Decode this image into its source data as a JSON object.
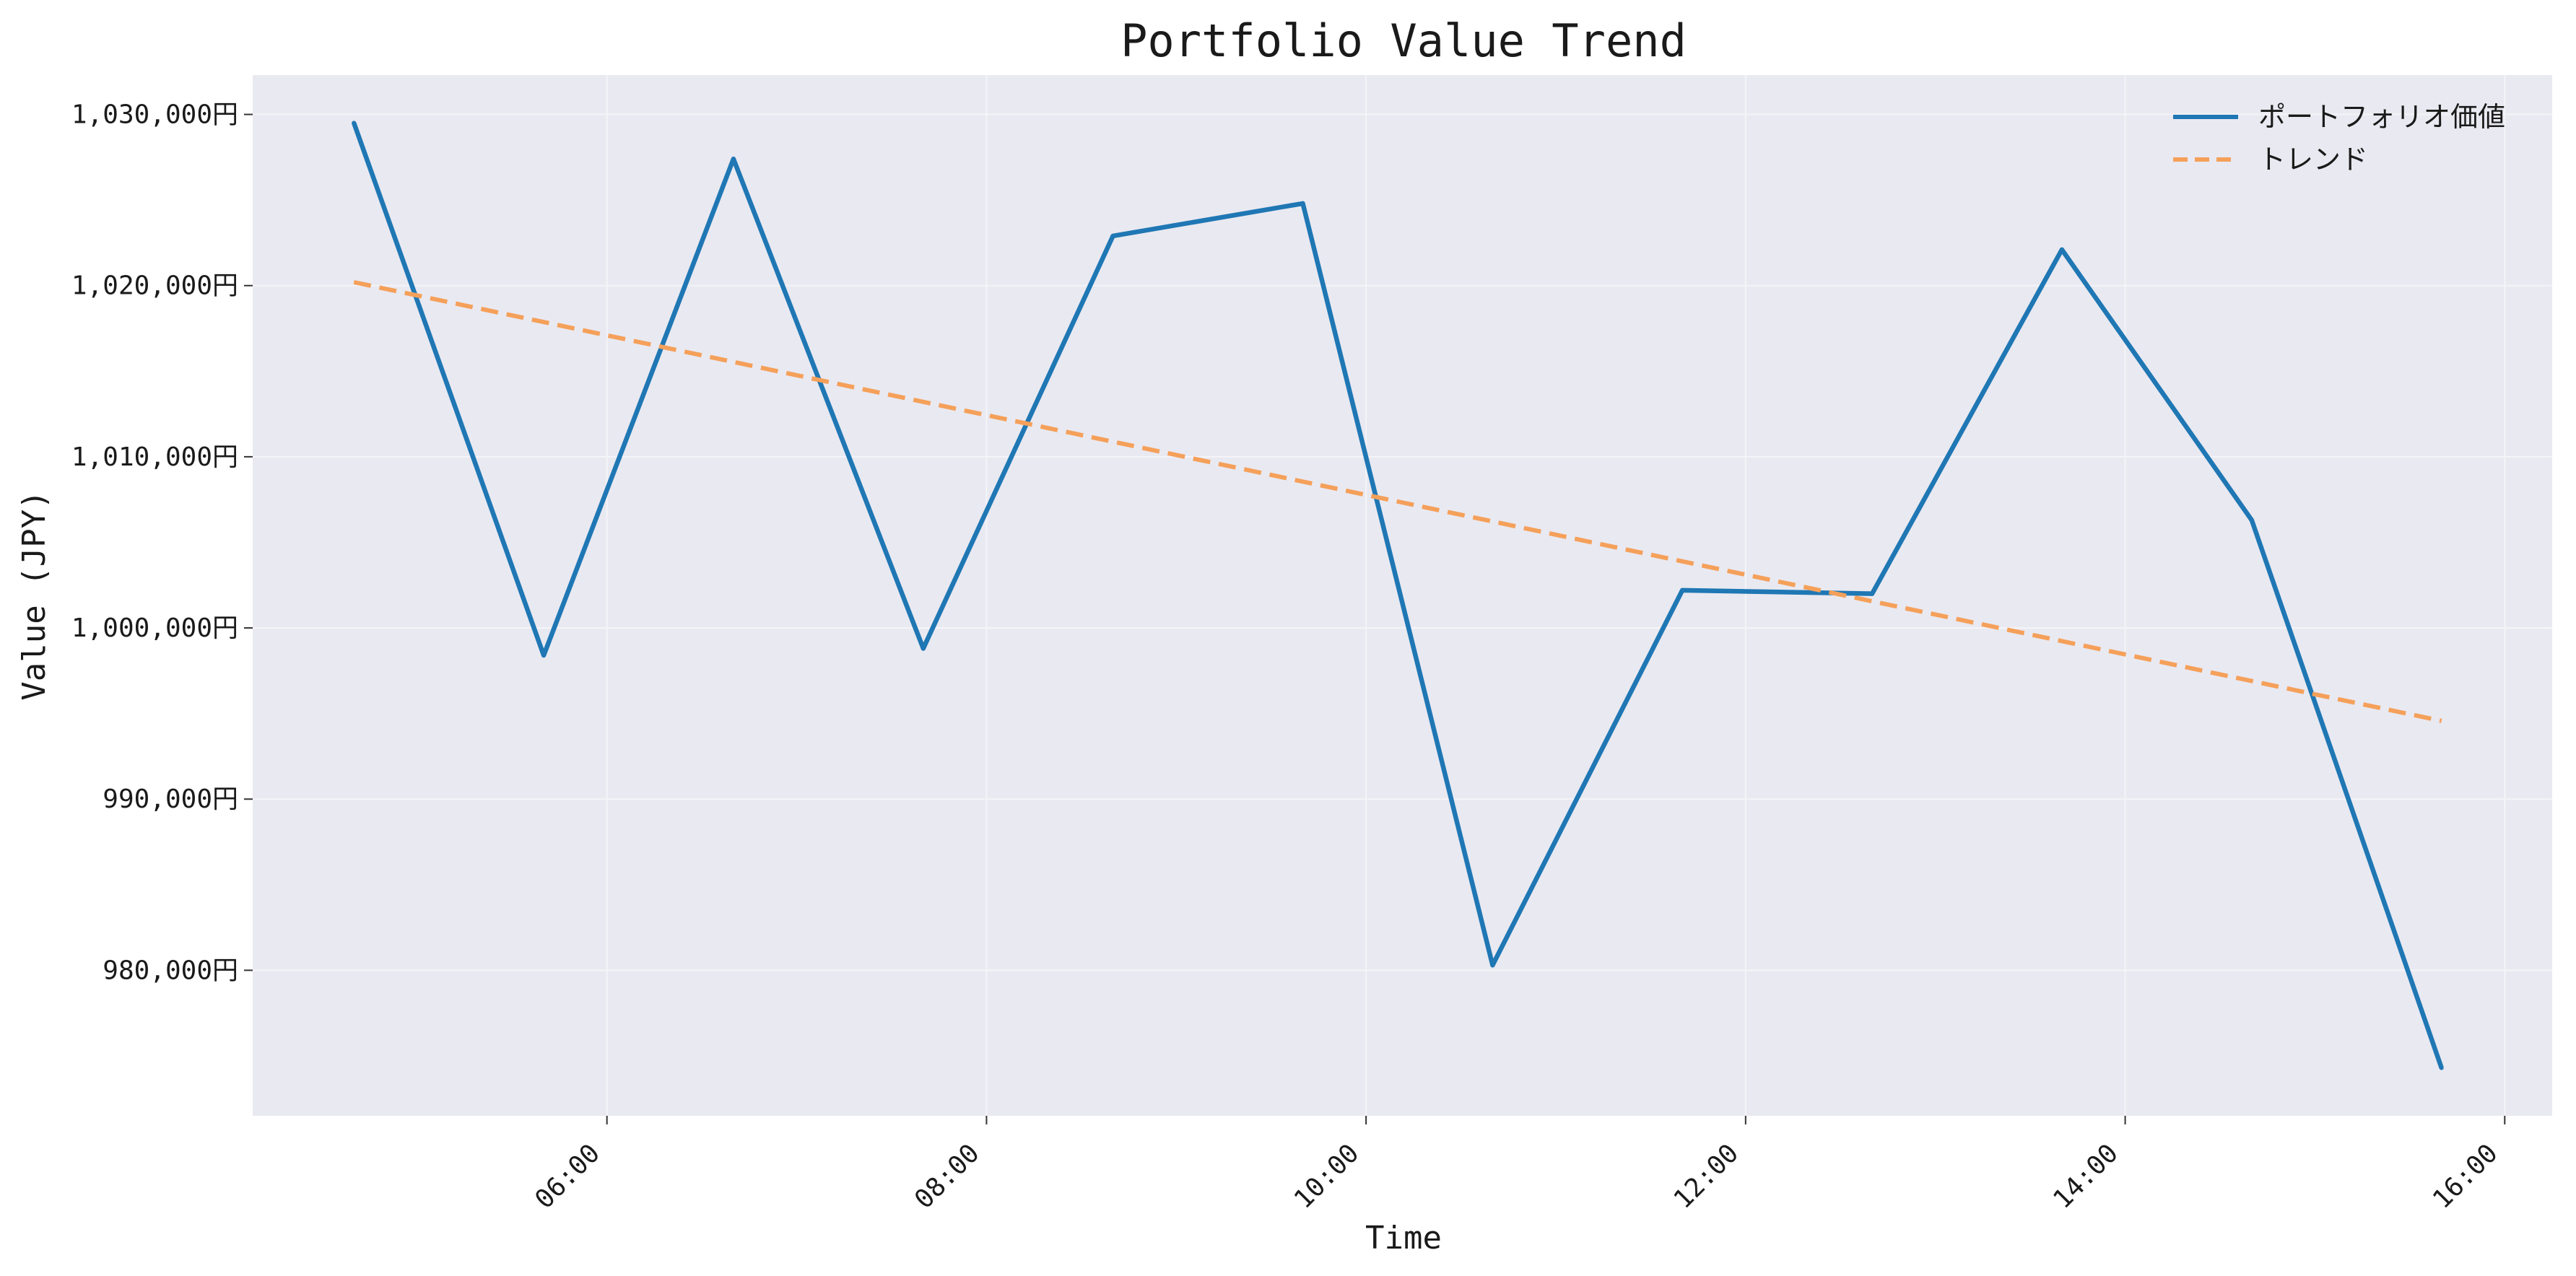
{
  "chart_data": {
    "type": "line",
    "title": "Portfolio Value Trend",
    "xlabel": "Time",
    "ylabel": "Value (JPY)",
    "x_tick_labels": [
      "06:00",
      "08:00",
      "10:00",
      "12:00",
      "14:00",
      "16:00"
    ],
    "y_tick_labels": [
      "980,000円",
      "990,000円",
      "1,000,000円",
      "1,010,000円",
      "1,020,000円",
      "1,030,000円"
    ],
    "ylim": [
      971500,
      1032300
    ],
    "xlim": [
      "04:08",
      "16:15"
    ],
    "grid": true,
    "legend_position": "top-right",
    "x": [
      "04:40",
      "05:40",
      "06:40",
      "07:40",
      "08:40",
      "09:40",
      "10:40",
      "11:40",
      "12:40",
      "13:40",
      "14:40",
      "15:40"
    ],
    "series": [
      {
        "name": "ポートフォリオ価値",
        "style": "solid",
        "color": "#1f77b4",
        "values": [
          1029500,
          998400,
          1027400,
          998800,
          1022900,
          1024800,
          980300,
          1002200,
          1002000,
          1022100,
          1006300,
          974300
        ]
      },
      {
        "name": "トレンド",
        "style": "dashed",
        "color": "#f5a05a",
        "values": [
          1020200,
          1017870,
          1015540,
          1013210,
          1010880,
          1008550,
          1006220,
          1003890,
          1001560,
          999230,
          996900,
          994570
        ]
      }
    ]
  },
  "colors": {
    "plot_background": "#e9e9f1",
    "grid": "#f4f4f8"
  }
}
